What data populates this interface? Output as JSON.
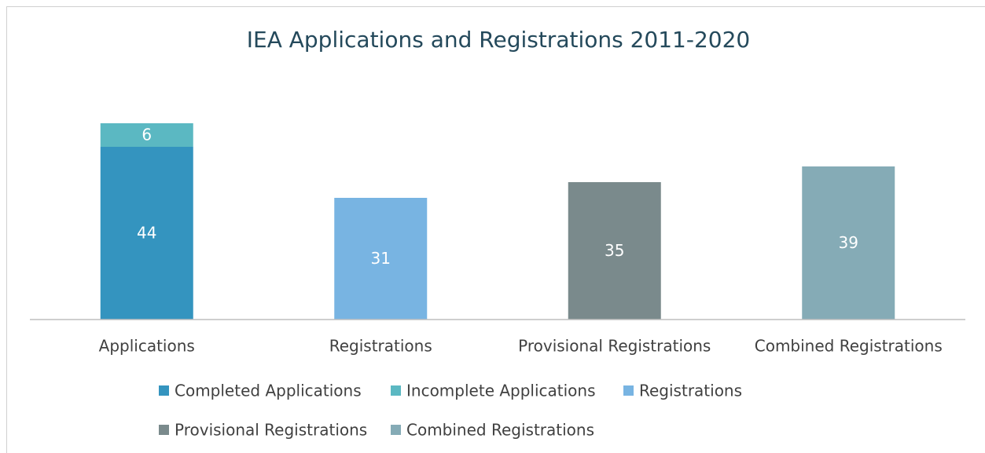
{
  "chart_data": {
    "type": "stacked_bar",
    "title": "IEA Applications and Registrations 2011-2020",
    "categories": [
      "Applications",
      "Registrations",
      "Provisional Registrations",
      "Combined Registrations"
    ],
    "series": [
      {
        "name": "Completed Applications",
        "color": "#3494bf",
        "values": [
          44,
          null,
          null,
          null
        ]
      },
      {
        "name": "Incomplete Applications",
        "color": "#5bb8c2",
        "values": [
          6,
          null,
          null,
          null
        ]
      },
      {
        "name": "Registrations",
        "color": "#78b4e2",
        "values": [
          null,
          31,
          null,
          null
        ]
      },
      {
        "name": "Provisional Registrations",
        "color": "#7a8a8c",
        "values": [
          null,
          null,
          35,
          null
        ]
      },
      {
        "name": "Combined Registrations",
        "color": "#85abb6",
        "values": [
          null,
          null,
          null,
          39
        ]
      }
    ],
    "ylim": [
      0,
      60
    ],
    "legend": "bottom"
  }
}
